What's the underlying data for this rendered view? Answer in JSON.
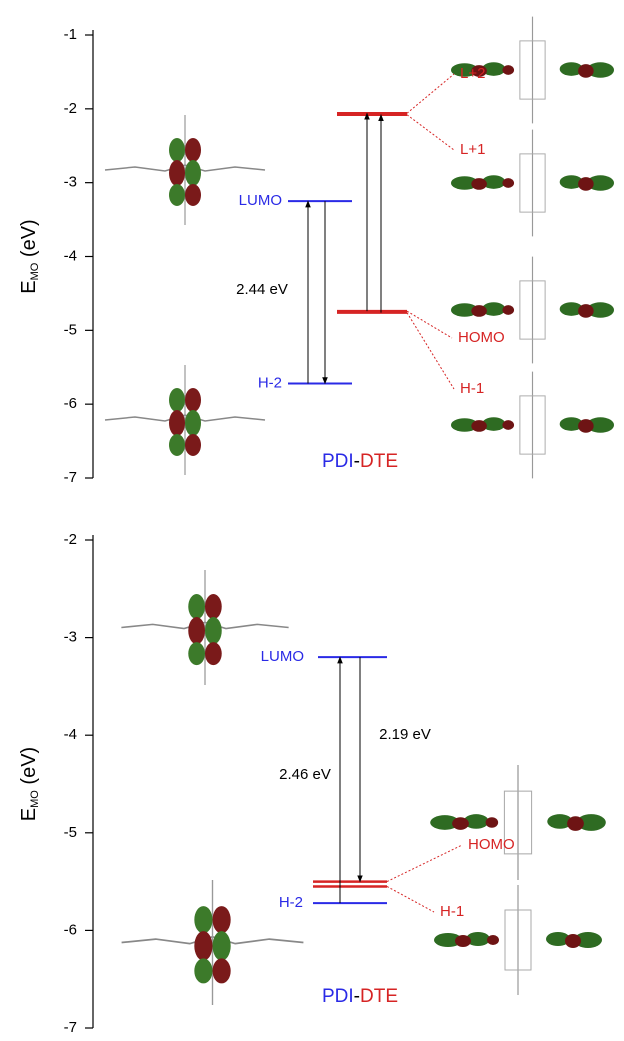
{
  "chart_data": [
    {
      "type": "levels",
      "ylabel": "E",
      "ylabel_sub": "MO",
      "ylabel_unit": "(eV)",
      "ylim": [
        -7,
        -1
      ],
      "yticks": [
        -7,
        -6,
        -5,
        -4,
        -3,
        -2,
        -1
      ],
      "levels": [
        {
          "name": "LUMO",
          "value": -3.25,
          "color": "#2a2ae6"
        },
        {
          "name": "H-2",
          "value": -5.72,
          "color": "#2a2ae6"
        },
        {
          "name": "L+2",
          "value": -2.06,
          "color": "#d62424"
        },
        {
          "name": "L+1",
          "value": -2.08,
          "color": "#d62424"
        },
        {
          "name": "HOMO",
          "value": -4.74,
          "color": "#d62424"
        },
        {
          "name": "H-1",
          "value": -4.76,
          "color": "#d62424"
        }
      ],
      "annotations": [
        "2.44 eV"
      ],
      "legend": [
        {
          "text": "PDI",
          "color": "#2a2ae6"
        },
        {
          "text": "-",
          "color": "#000000"
        },
        {
          "text": "DTE",
          "color": "#d62424"
        }
      ]
    },
    {
      "type": "levels",
      "ylabel": "E",
      "ylabel_sub": "MO",
      "ylabel_unit": "(eV)",
      "ylim": [
        -7,
        -2
      ],
      "yticks": [
        -7,
        -6,
        -5,
        -4,
        -3,
        -2
      ],
      "levels": [
        {
          "name": "LUMO",
          "value": -3.2,
          "color": "#2a2ae6"
        },
        {
          "name": "H-2",
          "value": -5.72,
          "color": "#2a2ae6"
        },
        {
          "name": "HOMO",
          "value": -5.5,
          "color": "#d62424"
        },
        {
          "name": "H-1",
          "value": -5.55,
          "color": "#d62424"
        }
      ],
      "annotations": [
        "2.46 eV",
        "2.19 eV"
      ],
      "legend": [
        {
          "text": "PDI",
          "color": "#2a2ae6"
        },
        {
          "text": "-",
          "color": "#000000"
        },
        {
          "text": "DTE",
          "color": "#d62424"
        }
      ]
    }
  ]
}
